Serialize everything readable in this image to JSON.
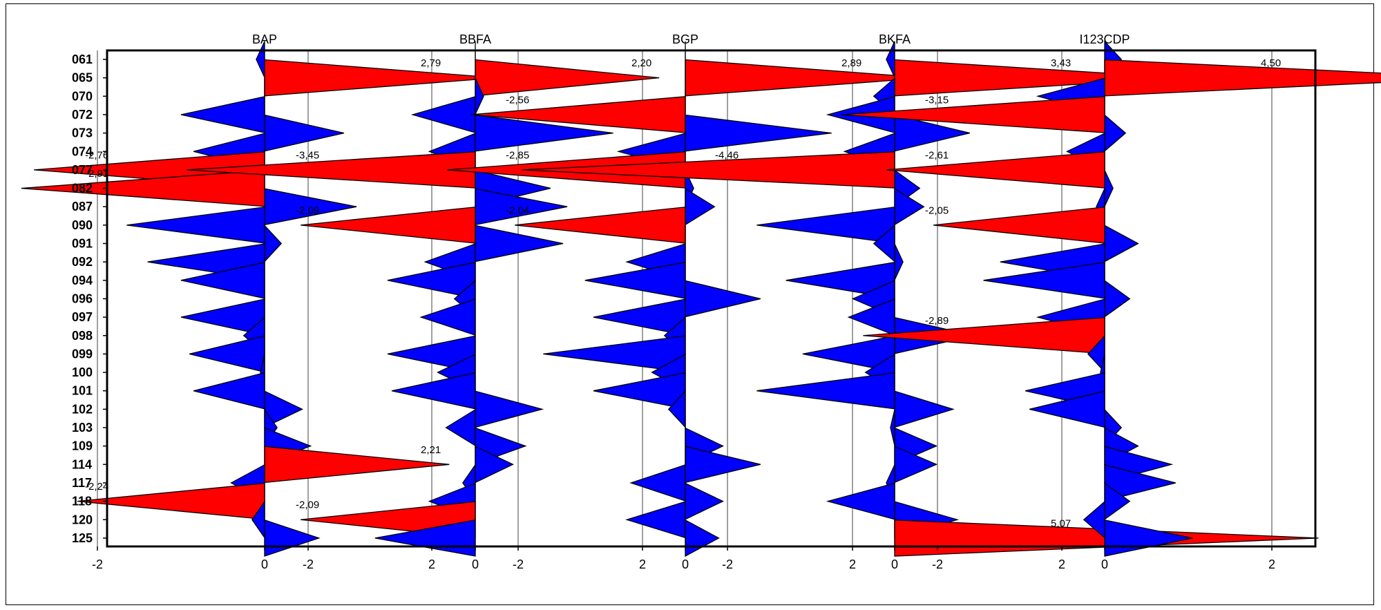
{
  "chart_data": {
    "type": "area",
    "orientation": "horizontal",
    "categories": [
      "061",
      "065",
      "070",
      "072",
      "073",
      "074",
      "077",
      "082",
      "087",
      "090",
      "091",
      "092",
      "094",
      "096",
      "097",
      "098",
      "099",
      "100",
      "101",
      "102",
      "103",
      "109",
      "114",
      "117",
      "118",
      "120",
      "125"
    ],
    "x_ticks": [
      "-2",
      "0",
      "2"
    ],
    "xlim": [
      -2,
      2
    ],
    "grid": true,
    "colors": {
      "positive_highlight": "#ff0000",
      "negative_highlight": "#ff0000",
      "normal": "#0000ff",
      "grid": "#808080"
    },
    "series": [
      {
        "name": "BAP",
        "values": [
          -0.1,
          2.79,
          0.0,
          -1.0,
          0.95,
          -0.85,
          -2.76,
          -2.91,
          1.1,
          -1.65,
          0.2,
          -1.4,
          -1.0,
          0.0,
          -1.0,
          -0.25,
          -0.9,
          -0.05,
          -0.85,
          0.45,
          0.15,
          0.55,
          2.21,
          -0.4,
          -2.24,
          -0.15,
          0.65
        ],
        "labels": {
          "1": "2,79",
          "6": "-2,76",
          "7": "-2,91",
          "22": "2,21",
          "24": "-2,24"
        }
      },
      {
        "name": "BBFA",
        "values": [
          0.0,
          2.2,
          0.1,
          -0.75,
          1.65,
          -0.55,
          -3.45,
          0.9,
          1.1,
          -2.09,
          1.05,
          -0.6,
          -1.05,
          -0.25,
          -0.65,
          0.0,
          -1.05,
          -0.45,
          -1.0,
          0.8,
          -0.35,
          0.6,
          0.45,
          -0.15,
          -0.55,
          -2.09,
          -1.2
        ],
        "labels": {
          "1": "2,20",
          "6": "-3,45",
          "9": "-2,09",
          "25": "-2,09"
        }
      },
      {
        "name": "BGP",
        "values": [
          0.0,
          2.89,
          0.0,
          -2.56,
          1.75,
          -0.8,
          -2.85,
          0.1,
          0.35,
          -2.04,
          0.0,
          -0.7,
          -1.2,
          0.9,
          -1.1,
          -0.25,
          -1.7,
          -0.4,
          -1.1,
          -0.2,
          0.0,
          0.45,
          0.9,
          -0.65,
          0.45,
          -0.7,
          0.4
        ],
        "labels": {
          "1": "2,89",
          "3": "-2,56",
          "6": "-2,85",
          "9": "-2,04"
        }
      },
      {
        "name": "BKFA",
        "values": [
          -0.1,
          3.43,
          -0.25,
          -0.8,
          0.9,
          -0.6,
          -4.46,
          0.3,
          0.35,
          -1.65,
          -0.25,
          0.1,
          -1.3,
          -0.5,
          -0.55,
          0.95,
          -1.1,
          -0.35,
          -1.65,
          0.7,
          -0.05,
          0.5,
          0.5,
          -0.1,
          -0.8,
          0.75,
          5.07
        ],
        "labels": {
          "1": "3,43",
          "6": "-4,46",
          "26": "5,07"
        }
      },
      {
        "name": "I123CDP",
        "values": [
          0.2,
          4.5,
          -0.8,
          -3.15,
          0.25,
          -0.45,
          -2.61,
          0.1,
          -0.1,
          -2.05,
          0.4,
          -1.25,
          -1.45,
          0.3,
          -0.8,
          -2.89,
          -0.2,
          -0.05,
          -0.95,
          -0.9,
          0.2,
          0.4,
          0.8,
          0.85,
          0.3,
          -0.25,
          1.05
        ],
        "labels": {
          "1": "4,50",
          "3": "-3,15",
          "6": "-2,61",
          "9": "-2,05",
          "15": "-2,89"
        }
      }
    ]
  }
}
